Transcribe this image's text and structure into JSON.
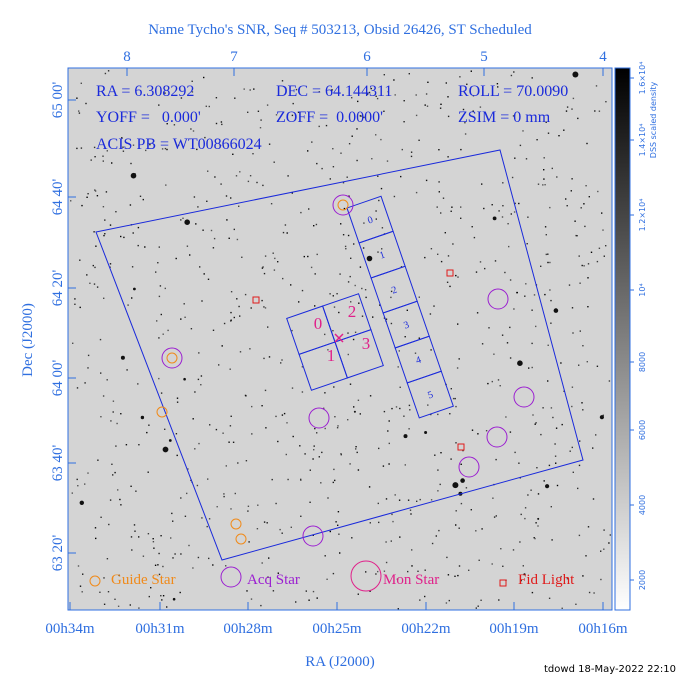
{
  "title": "Name Tycho's SNR, Seq # 503213, Obsid 26426, ST Scheduled",
  "top_axis": {
    "ticks": [
      "8",
      "7",
      "6",
      "5",
      "4"
    ]
  },
  "left_axis": {
    "title": "Dec (J2000)",
    "ticks": [
      "65 00'",
      "64 40'",
      "64 20'",
      "64 00'",
      "63 40'",
      "63 20'"
    ]
  },
  "bottom_axis": {
    "title": "RA (J2000)",
    "ticks": [
      "00h34m",
      "00h31m",
      "00h28m",
      "00h25m",
      "00h22m",
      "00h19m",
      "00h16m"
    ]
  },
  "info": {
    "ra": "RA = 6.308292",
    "dec": "DEC = 64.144311",
    "roll": "ROLL = 70.0090",
    "yoff": "YOFF =   0.000'",
    "zoff": "ZOFF =  0.0000'",
    "zsim": "ZSIM = 0 mm",
    "acis": "ACIS PB = WT00866024"
  },
  "chips": {
    "i_array": [
      "0",
      "1",
      "2",
      "3"
    ],
    "s_array": [
      "0",
      "1",
      "2",
      "3",
      "4",
      "5"
    ]
  },
  "legend": [
    "Guide Star",
    "Acq Star",
    "Mon Star",
    "Fid Light"
  ],
  "colorbar": {
    "title": "DSS scaled density",
    "ticks": [
      "2000",
      "4000",
      "6000",
      "8000",
      "10⁴",
      "1.2×10⁴",
      "1.4×10⁴",
      "1.6×10⁴"
    ]
  },
  "footer": "tdowd 18-May-2022 22:10"
}
